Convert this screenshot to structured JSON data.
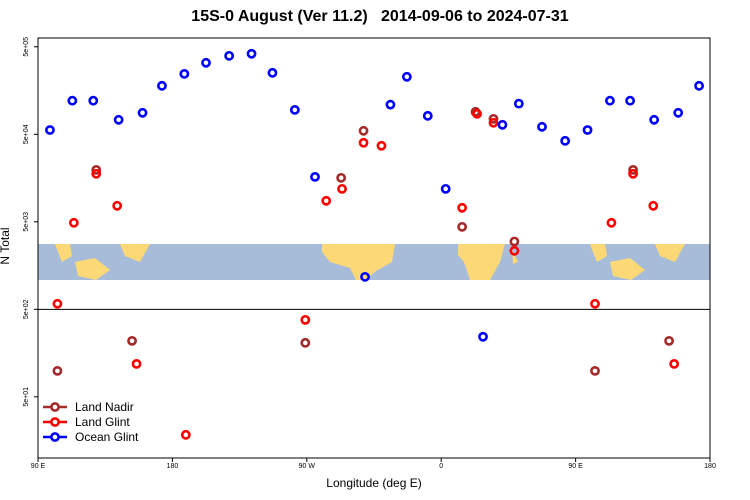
{
  "chart_data": {
    "type": "scatter",
    "title": "15S-0 August (Ver 11.2)   2014-09-06 to 2024-07-31",
    "xlabel": "Longitude (deg E)",
    "ylabel": "N Total",
    "log_y": true,
    "legend": "bottom-left",
    "reference_line": 500,
    "xlim": [
      90,
      540
    ],
    "xticks": [
      {
        "value": 90,
        "label": "90 E"
      },
      180,
      {
        "value": 270,
        "label": "90 W"
      },
      {
        "value": 360,
        "label": "0"
      },
      {
        "value": 450,
        "label": "90 E"
      },
      {
        "value": 540,
        "label": "180"
      }
    ],
    "ylim": [
      10,
      630000
    ],
    "yticks": [
      {
        "value": 50,
        "label": "5e+01"
      },
      {
        "value": 500,
        "label": "5e+02"
      },
      {
        "value": 5000,
        "label": "5e+03"
      },
      {
        "value": 50000,
        "label": "5e+04"
      },
      {
        "value": 500000,
        "label": "5e+05"
      }
    ],
    "series": [
      {
        "name": "Land Nadir",
        "color": "#a52a2a",
        "x": [
          103,
          129,
          153,
          269,
          293,
          308,
          374,
          383,
          395,
          409,
          463,
          488.5,
          512.6
        ],
        "values": [
          99,
          19600,
          218,
          207,
          15900,
          54800,
          4380,
          90300,
          75000,
          2980,
          99,
          19600,
          218
        ]
      },
      {
        "name": "Land Glint",
        "color": "#ff0000",
        "x": [
          103,
          114,
          129,
          143,
          156,
          189,
          269,
          283,
          293.6,
          308,
          320,
          374,
          384,
          395,
          409,
          463,
          474,
          488.5,
          502,
          516
        ],
        "values": [
          578,
          4870,
          17700,
          7620,
          119,
          18.4,
          379,
          8690,
          11900,
          40000,
          37000,
          7230,
          85700,
          67700,
          2330,
          578,
          4870,
          17700,
          7620,
          119
        ]
      },
      {
        "name": "Ocean Glint",
        "color": "#0000ff",
        "x": [
          98,
          113,
          127,
          144,
          160,
          173,
          188,
          202.5,
          218,
          233,
          247,
          262,
          275.5,
          309,
          326,
          337,
          351,
          363,
          388,
          401,
          412,
          427.5,
          443,
          458,
          473,
          486.5,
          502.6,
          518.7,
          532.7
        ],
        "values": [
          56000,
          121000,
          121000,
          73200,
          88000,
          179000,
          245000,
          328000,
          394000,
          416000,
          252000,
          95000,
          16300,
          1175,
          109000,
          227000,
          81300,
          11900,
          243,
          64200,
          112000,
          60900,
          42100,
          56000,
          121000,
          121000,
          73200,
          88000,
          179000
        ]
      }
    ]
  }
}
